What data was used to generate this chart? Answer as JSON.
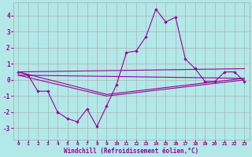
{
  "xlabel": "Windchill (Refroidissement éolien,°C)",
  "background_color": "#b2e8e8",
  "grid_color": "#b0b0b0",
  "line_color": "#990099",
  "x_ticks": [
    0,
    1,
    2,
    3,
    4,
    5,
    6,
    7,
    8,
    9,
    10,
    11,
    12,
    13,
    14,
    15,
    16,
    17,
    18,
    19,
    20,
    21,
    22,
    23
  ],
  "y_ticks": [
    -3,
    -2,
    -1,
    0,
    1,
    2,
    3,
    4
  ],
  "xlim": [
    -0.5,
    23.5
  ],
  "ylim": [
    -3.7,
    4.8
  ],
  "series1_x": [
    0,
    1,
    2,
    3,
    4,
    5,
    6,
    7,
    8,
    9,
    10,
    11,
    12,
    13,
    14,
    15,
    16,
    17,
    18,
    19,
    20,
    21,
    22,
    23
  ],
  "series1_y": [
    0.5,
    0.3,
    -0.7,
    -0.7,
    -2.0,
    -2.4,
    -2.6,
    -1.8,
    -2.9,
    -1.6,
    -0.3,
    1.7,
    1.8,
    2.7,
    4.4,
    3.6,
    3.9,
    1.3,
    0.7,
    -0.1,
    -0.1,
    0.5,
    0.5,
    -0.1
  ],
  "trend1_x": [
    0,
    23
  ],
  "trend1_y": [
    0.5,
    0.7
  ],
  "trend2_x": [
    0,
    23
  ],
  "trend2_y": [
    0.3,
    0.1
  ],
  "trend3_x": [
    0,
    9,
    23
  ],
  "trend3_y": [
    0.5,
    -0.9,
    0.1
  ],
  "trend4_x": [
    0,
    9,
    23
  ],
  "trend4_y": [
    0.3,
    -1.0,
    0.0
  ]
}
